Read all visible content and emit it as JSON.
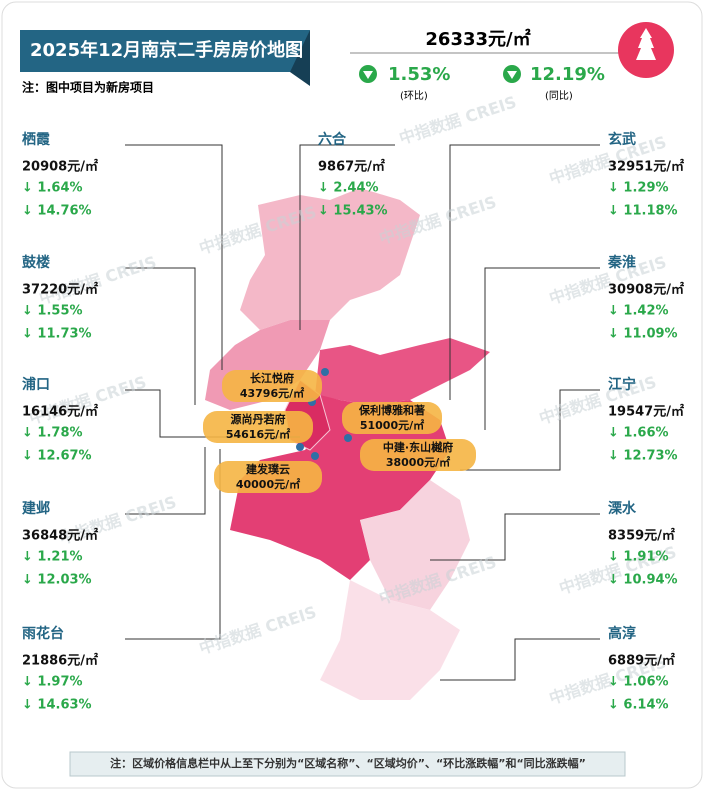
{
  "header": {
    "title": "2025年12月南京二手房房价地图",
    "note": "注：图中项目为新房项目"
  },
  "summary": {
    "price": "26333元/㎡",
    "mom": "1.53%",
    "mom_label": "(环比)",
    "yoy": "12.19%",
    "yoy_label": "(同比)"
  },
  "watermark": "中指数据 CREIS",
  "districts": [
    {
      "name": "栖霞",
      "price": "20908元/㎡",
      "mom": "↓ 1.64%",
      "yoy": "↓ 14.76%"
    },
    {
      "name": "鼓楼",
      "price": "37220元/㎡",
      "mom": "↓ 1.55%",
      "yoy": "↓ 11.73%"
    },
    {
      "name": "浦口",
      "price": "16146元/㎡",
      "mom": "↓ 1.78%",
      "yoy": "↓ 12.67%"
    },
    {
      "name": "建邺",
      "price": "36848元/㎡",
      "mom": "↓ 1.21%",
      "yoy": "↓ 12.03%"
    },
    {
      "name": "雨花台",
      "price": "21886元/㎡",
      "mom": "↓ 1.97%",
      "yoy": "↓ 14.63%"
    },
    {
      "name": "六合",
      "price": "9867元/㎡",
      "mom": "↓ 2.44%",
      "yoy": "↓ 15.43%"
    },
    {
      "name": "玄武",
      "price": "32951元/㎡",
      "mom": "↓ 1.29%",
      "yoy": "↓ 11.18%"
    },
    {
      "name": "秦淮",
      "price": "30908元/㎡",
      "mom": "↓ 1.42%",
      "yoy": "↓ 11.09%"
    },
    {
      "name": "江宁",
      "price": "19547元/㎡",
      "mom": "↓ 1.66%",
      "yoy": "↓ 12.73%"
    },
    {
      "name": "溧水",
      "price": "8359元/㎡",
      "mom": "↓ 1.91%",
      "yoy": "↓ 10.94%"
    },
    {
      "name": "高淳",
      "price": "6889元/㎡",
      "mom": "↓ 1.06%",
      "yoy": "↓ 6.14%"
    }
  ],
  "projects": [
    {
      "name": "长江悦府",
      "price": "43796元/㎡"
    },
    {
      "name": "源尚丹若府",
      "price": "54616元/㎡"
    },
    {
      "name": "保利博雅和著",
      "price": "51000元/㎡"
    },
    {
      "name": "中建·东山樾府",
      "price": "38000元/㎡"
    },
    {
      "name": "建发璞云",
      "price": "40000元/㎡"
    }
  ],
  "footer": "注：区域价格信息栏中从上至下分别为“区域名称”、“区域均价”、“环比涨跌幅”和“同比涨跌幅”"
}
